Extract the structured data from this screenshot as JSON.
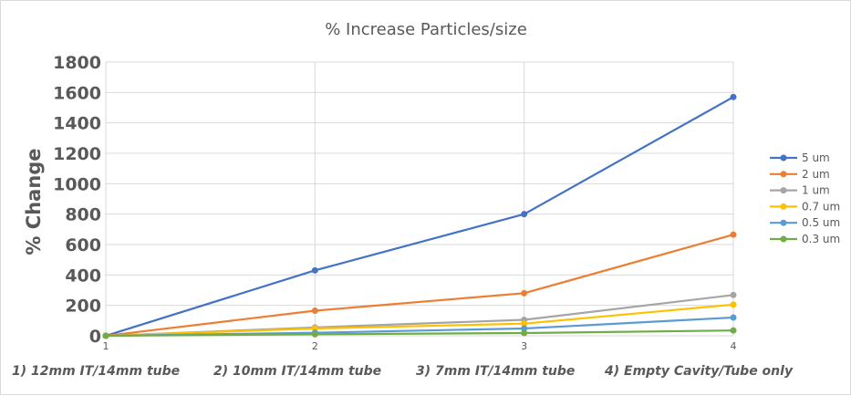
{
  "chart_data": {
    "type": "line",
    "title": "% Increase Particles/size",
    "xlabel": "",
    "ylabel": "% Change",
    "x": [
      1,
      2,
      3,
      4
    ],
    "x_tick_labels": [
      "1",
      "2",
      "3",
      "4"
    ],
    "ylim": [
      0,
      1800
    ],
    "y_ticks": [
      0,
      200,
      400,
      600,
      800,
      1000,
      1200,
      1400,
      1600,
      1800
    ],
    "grid": true,
    "legend_position": "right",
    "series": [
      {
        "name": "5 um",
        "color": "#4472c4",
        "values": [
          0,
          430,
          800,
          1570
        ]
      },
      {
        "name": "2 um",
        "color": "#ed7d31",
        "values": [
          0,
          165,
          280,
          665
        ]
      },
      {
        "name": "1 um",
        "color": "#a5a5a5",
        "values": [
          0,
          55,
          105,
          268
        ]
      },
      {
        "name": "0.7 um",
        "color": "#ffc000",
        "values": [
          0,
          48,
          80,
          205
        ]
      },
      {
        "name": "0.5 um",
        "color": "#5b9bd5",
        "values": [
          0,
          20,
          48,
          120
        ]
      },
      {
        "name": "0.3 um",
        "color": "#70ad47",
        "values": [
          0,
          10,
          18,
          35
        ]
      }
    ],
    "annotations": [
      "1)  12mm IT/14mm tube",
      "2)  10mm IT/14mm tube",
      "3)  7mm IT/14mm tube",
      "4) Empty Cavity/Tube only"
    ]
  }
}
